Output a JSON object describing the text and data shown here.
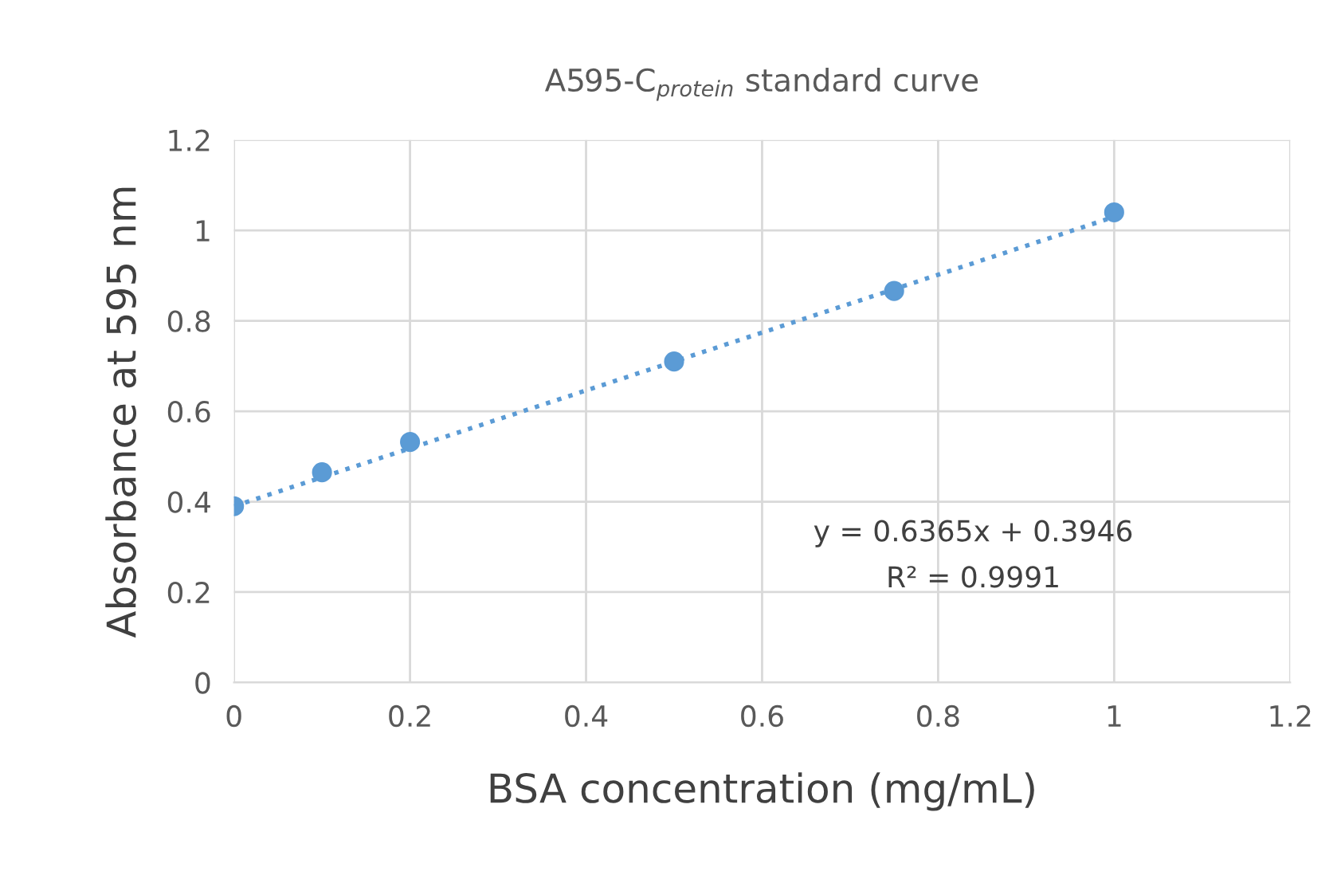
{
  "chart_data": {
    "type": "scatter",
    "title": "A595-C$_{protein}$ standard curve",
    "xlabel": "BSA concentration (mg/mL)",
    "ylabel": "Absorbance at 595 nm",
    "x": [
      0,
      0.1,
      0.2,
      0.5,
      0.75,
      1
    ],
    "series": [
      {
        "color": "#5b9bd5",
        "values": [
          0.39,
          0.465,
          0.532,
          0.71,
          0.866,
          1.04
        ],
        "marker": "circle"
      },
      {
        "type": "line",
        "color": "#5b9bd5",
        "x": [
          0,
          1
        ],
        "values": [
          0.39,
          1.03
        ],
        "line_style": "dotted",
        "marker": "none"
      }
    ],
    "annotations": [
      "y = 0.6365x + 0.3946",
      "R² = 0.9991"
    ],
    "xlim": [
      0,
      1.2
    ],
    "xticks": [
      0,
      0.2,
      0.4,
      0.6,
      0.8,
      1,
      1.2
    ],
    "ylim": [
      0,
      1.2
    ],
    "yticks": [
      0,
      0.2,
      0.4,
      0.6,
      0.8,
      1,
      1.2
    ],
    "grid": true,
    "legend": false
  }
}
